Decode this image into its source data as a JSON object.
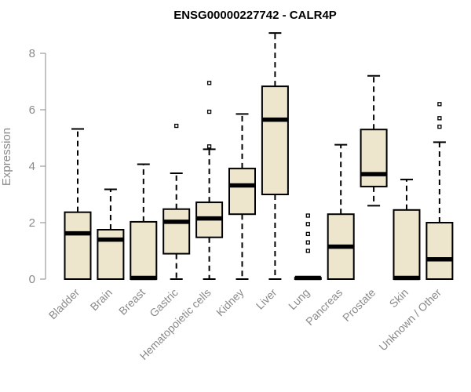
{
  "chart_data": {
    "type": "box",
    "title": "ENSG00000227742 - CALR4P",
    "ylabel": "Expression",
    "xlabel": "",
    "ylim": [
      0,
      8.9
    ],
    "yticks": [
      0,
      2,
      4,
      6,
      8
    ],
    "box_fill": "#ede6cc",
    "box_stroke": "#000000",
    "axis_color": "#8a8a8a",
    "categories": [
      "Bladder",
      "Brain",
      "Breast",
      "Gastric",
      "Hematopoietic cells",
      "Kidney",
      "Liver",
      "Lung",
      "Pancreas",
      "Prostate",
      "Skin",
      "Unknown / Other"
    ],
    "boxes": [
      {
        "min": 0,
        "q1": 0,
        "median": 1.62,
        "q3": 2.37,
        "max": 5.32,
        "outliers": []
      },
      {
        "min": 0,
        "q1": 0,
        "median": 1.4,
        "q3": 1.75,
        "max": 3.18,
        "outliers": []
      },
      {
        "min": 0,
        "q1": 0,
        "median": 0.02,
        "q3": 2.03,
        "max": 4.07,
        "outliers": []
      },
      {
        "min": 0,
        "q1": 0.9,
        "median": 2.03,
        "q3": 2.48,
        "max": 3.75,
        "outliers": [
          5.43
        ]
      },
      {
        "min": 0,
        "q1": 1.48,
        "median": 2.15,
        "q3": 2.72,
        "max": 4.6,
        "outliers": [
          4.7,
          5.93,
          6.95
        ]
      },
      {
        "min": 0,
        "q1": 2.3,
        "median": 3.32,
        "q3": 3.92,
        "max": 5.85,
        "outliers": []
      },
      {
        "min": 0,
        "q1": 3.0,
        "median": 5.65,
        "q3": 6.83,
        "max": 8.72,
        "outliers": []
      },
      {
        "min": 0,
        "q1": 0,
        "median": 0.02,
        "q3": 0.05,
        "max": 0.05,
        "outliers": [
          1.0,
          1.3,
          1.6,
          1.95,
          2.25
        ]
      },
      {
        "min": 0,
        "q1": 0,
        "median": 1.15,
        "q3": 2.3,
        "max": 4.76,
        "outliers": []
      },
      {
        "min": 2.6,
        "q1": 3.28,
        "median": 3.72,
        "q3": 5.3,
        "max": 7.2,
        "outliers": []
      },
      {
        "min": 0,
        "q1": 0,
        "median": 0.02,
        "q3": 2.45,
        "max": 3.53,
        "outliers": []
      },
      {
        "min": 0,
        "q1": 0,
        "median": 0.7,
        "q3": 2.0,
        "max": 4.85,
        "outliers": [
          5.4,
          5.7,
          6.2
        ]
      }
    ]
  }
}
